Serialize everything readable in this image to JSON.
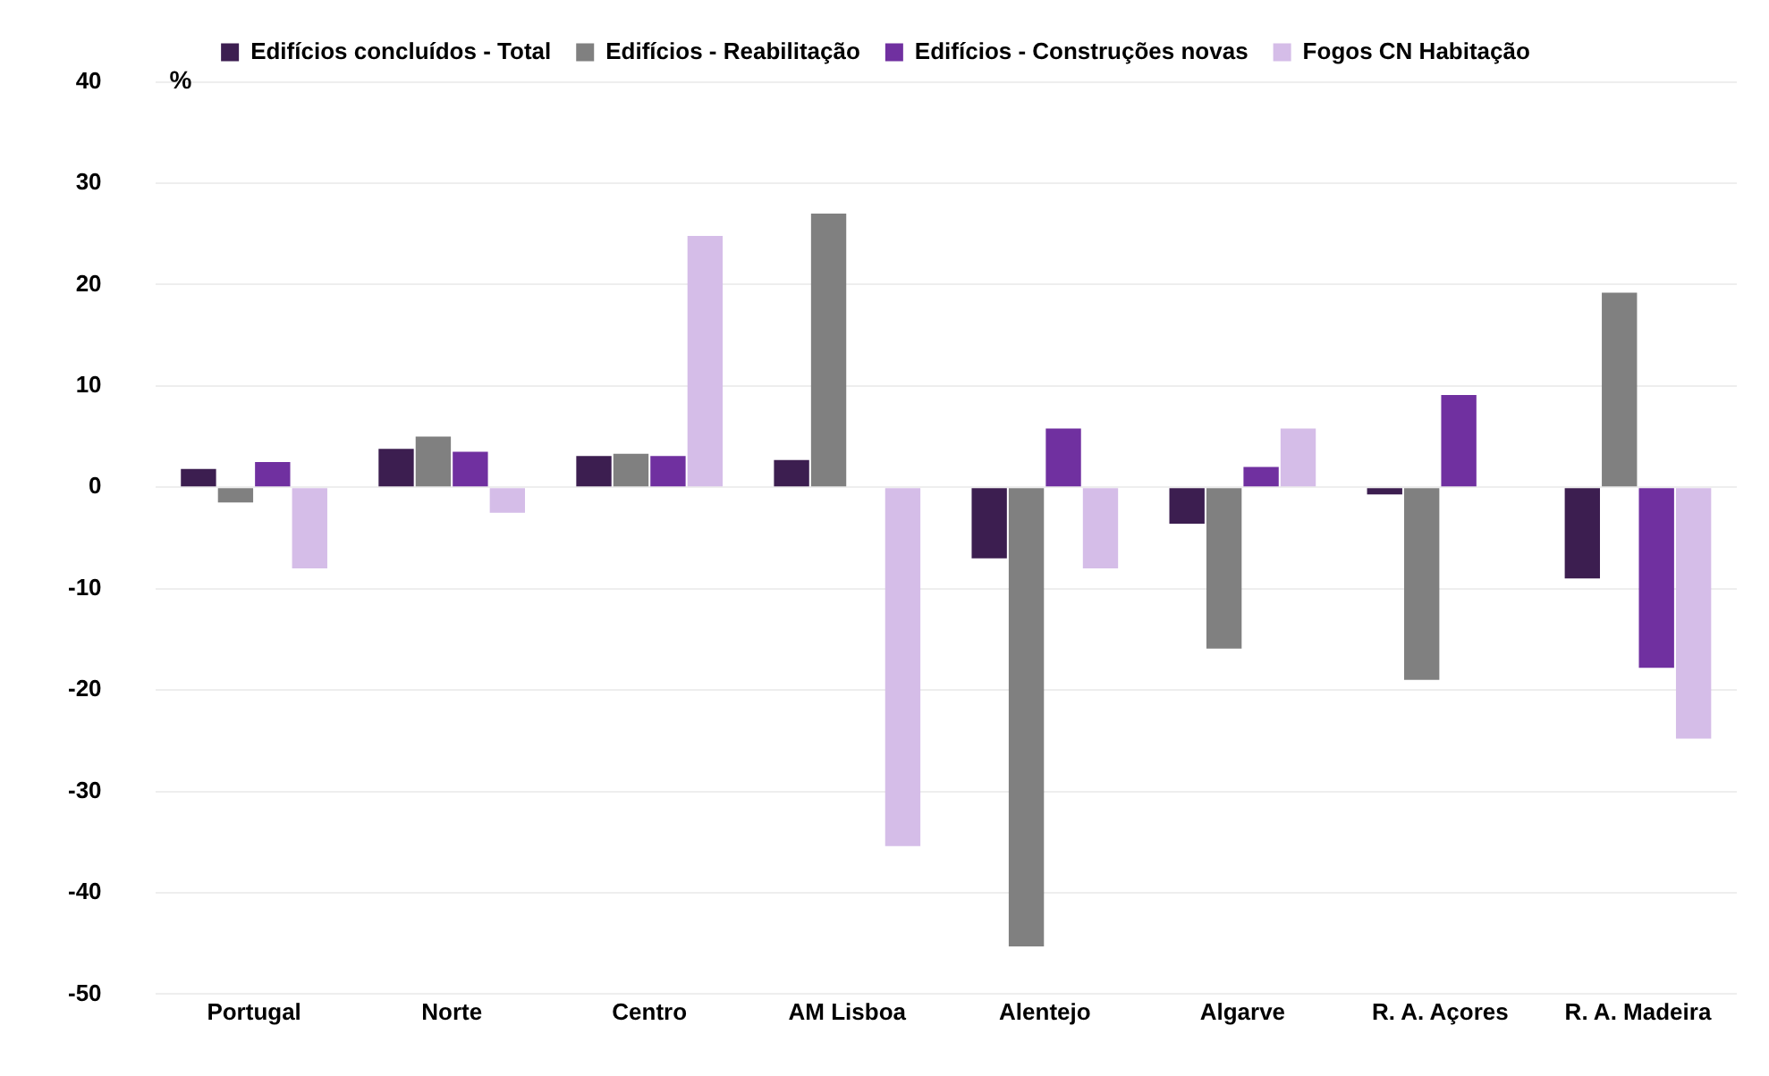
{
  "chart_data": {
    "type": "bar",
    "ylabel": "%",
    "categories": [
      "Portugal",
      "Norte",
      "Centro",
      "AM Lisboa",
      "Alentejo",
      "Algarve",
      "R. A. Açores",
      "R. A. Madeira"
    ],
    "series": [
      {
        "name": "Edifícios concluídos - Total",
        "color": "#3c1e50",
        "values": [
          1.8,
          3.8,
          3.1,
          2.7,
          -7.0,
          -3.6,
          -0.7,
          -9.0
        ]
      },
      {
        "name": "Edifícios - Reabilitação",
        "color": "#808080",
        "values": [
          -1.5,
          5.0,
          3.3,
          27.0,
          -45.3,
          -15.9,
          -19.0,
          19.2
        ]
      },
      {
        "name": "Edifícios - Construções novas",
        "color": "#7030a0",
        "values": [
          2.5,
          3.5,
          3.1,
          0,
          5.8,
          2.0,
          9.1,
          -17.8
        ]
      },
      {
        "name": "Fogos CN Habitação",
        "color": "#d5bde8",
        "values": [
          -8.0,
          -2.5,
          24.8,
          -35.4,
          -8.0,
          5.8,
          0,
          -24.8
        ]
      }
    ],
    "ylim": [
      -50,
      40
    ],
    "yticks": [
      -50,
      -40,
      -30,
      -20,
      -10,
      0,
      10,
      20,
      30,
      40
    ],
    "grid": "y",
    "legend": "top"
  }
}
